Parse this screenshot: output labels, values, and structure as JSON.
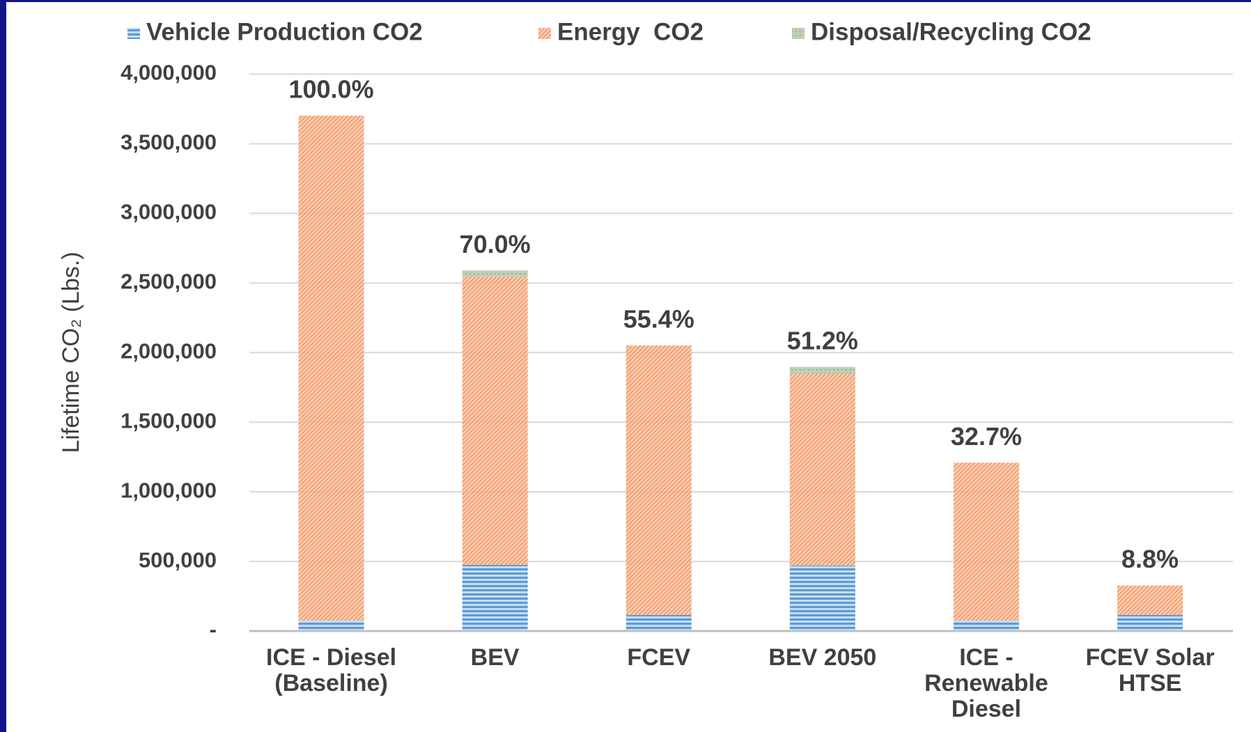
{
  "chart_data": {
    "type": "stacked_bar",
    "y_label": "Lifetime CO₂ (Lbs.)",
    "categories": [
      "ICE - Diesel (Baseline)",
      "BEV",
      "FCEV",
      "BEV 2050",
      "ICE - Renewable Diesel",
      "FCEV Solar HTSE"
    ],
    "series": [
      {
        "name": "Vehicle Production CO2",
        "color": "#5b9bd5",
        "values": [
          75000,
          475000,
          115000,
          470000,
          75000,
          115000
        ]
      },
      {
        "name": "Energy  CO2",
        "color": "#f4a070",
        "values": [
          3627000,
          2069000,
          1936000,
          1375000,
          1134000,
          212000
        ]
      },
      {
        "name": "Disposal/Recycling CO2",
        "color": "#a5bd98",
        "values": [
          0,
          46000,
          0,
          52000,
          0,
          0
        ]
      }
    ],
    "annotations": [
      "100.0%",
      "70.0%",
      "55.4%",
      "51.2%",
      "32.7%",
      "8.8%"
    ],
    "ylim": [
      0,
      4000000
    ],
    "yticks": [
      {
        "value": 0,
        "label": "-"
      },
      {
        "value": 500000,
        "label": "500,000"
      },
      {
        "value": 1000000,
        "label": "1,000,000"
      },
      {
        "value": 1500000,
        "label": "1,500,000"
      },
      {
        "value": 2000000,
        "label": "2,000,000"
      },
      {
        "value": 2500000,
        "label": "2,500,000"
      },
      {
        "value": 3000000,
        "label": "3,000,000"
      },
      {
        "value": 3500000,
        "label": "3,500,000"
      },
      {
        "value": 4000000,
        "label": "4,000,000"
      }
    ],
    "grid": true,
    "legend": "top"
  }
}
